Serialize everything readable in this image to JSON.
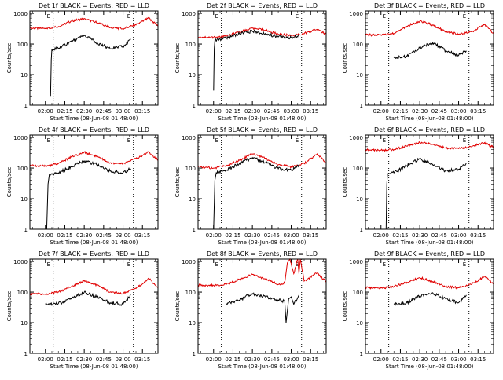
{
  "figure": {
    "shared": {
      "x_tick_labels": [
        "02:00",
        "02:15",
        "02:30",
        "02:45",
        "03:00",
        "03:15"
      ],
      "x_tick_values_min": [
        0,
        15,
        30,
        45,
        60,
        75
      ],
      "y_tick_labels": [
        "1",
        "10",
        "100",
        "1000"
      ],
      "y_tick_values": [
        1,
        10,
        100,
        1000
      ],
      "ylabel": "Counts/sec",
      "xlabel": "Start Time (08-Jun-08 01:48:00)",
      "event_marker_labels": [
        "E",
        "E"
      ],
      "colors": {
        "events": "#000000",
        "lld": "#e00000",
        "axes": "#000000",
        "background": "#ffffff"
      }
    },
    "panels": [
      {
        "title": "Det 1f BLACK = Events, RED = LLD"
      },
      {
        "title": "Det 2f BLACK = Events, RED = LLD"
      },
      {
        "title": "Det 3f BLACK = Events, RED = LLD"
      },
      {
        "title": "Det 4f BLACK = Events, RED = LLD"
      },
      {
        "title": "Det 5f BLACK = Events, RED = LLD"
      },
      {
        "title": "Det 6f BLACK = Events, RED = LLD"
      },
      {
        "title": "Det 7f BLACK = Events, RED = LLD"
      },
      {
        "title": "Det 8f BLACK = Events, RED = LLD"
      },
      {
        "title": "Det 9f BLACK = Events, RED = LLD"
      }
    ]
  },
  "chart_data": [
    {
      "type": "line",
      "title": "Det 1f BLACK = Events, RED = LLD",
      "xlabel": "",
      "ylabel": "Counts/sec",
      "yscale": "log",
      "xlim_min": [
        -12,
        87
      ],
      "ylim": [
        1,
        1200
      ],
      "event_markers_min": [
        6,
        68
      ],
      "series": [
        {
          "role": "lld",
          "x": [
            -12,
            0,
            10,
            20,
            30,
            40,
            50,
            60,
            70,
            80,
            87
          ],
          "y": [
            330,
            320,
            370,
            560,
            680,
            500,
            340,
            320,
            420,
            700,
            380
          ]
        },
        {
          "role": "events",
          "x": [
            4,
            4.5,
            5,
            10,
            20,
            30,
            40,
            50,
            60,
            66
          ],
          "y": [
            2,
            30,
            68,
            72,
            120,
            190,
            110,
            70,
            85,
            140
          ]
        }
      ]
    },
    {
      "type": "line",
      "title": "Det 2f BLACK = Events, RED = LLD",
      "xlabel": "",
      "ylabel": "Counts/sec",
      "yscale": "log",
      "xlim_min": [
        -12,
        87
      ],
      "ylim": [
        1,
        1200
      ],
      "event_markers_min": [
        6,
        68
      ],
      "series": [
        {
          "role": "lld",
          "x": [
            -12,
            0,
            10,
            20,
            30,
            40,
            50,
            60,
            66,
            72,
            80,
            87
          ],
          "y": [
            170,
            165,
            180,
            250,
            330,
            280,
            210,
            190,
            200,
            240,
            300,
            210
          ]
        },
        {
          "role": "events",
          "x": [
            0,
            0.5,
            1,
            10,
            20,
            30,
            40,
            50,
            60,
            66
          ],
          "y": [
            3,
            70,
            130,
            160,
            220,
            260,
            220,
            170,
            160,
            190
          ]
        }
      ]
    },
    {
      "type": "line",
      "title": "Det 3f BLACK = Events, RED = LLD",
      "xlabel": "",
      "ylabel": "Counts/sec",
      "yscale": "log",
      "xlim_min": [
        -12,
        87
      ],
      "ylim": [
        1,
        1200
      ],
      "event_markers_min": [
        6,
        68
      ],
      "series": [
        {
          "role": "lld",
          "x": [
            -12,
            0,
            10,
            20,
            30,
            40,
            50,
            60,
            70,
            80,
            87
          ],
          "y": [
            200,
            195,
            220,
            380,
            560,
            420,
            250,
            210,
            250,
            440,
            220
          ]
        },
        {
          "role": "events",
          "x": [
            10,
            20,
            30,
            40,
            50,
            60,
            66
          ],
          "y": [
            35,
            40,
            75,
            110,
            60,
            42,
            60
          ]
        }
      ]
    },
    {
      "type": "line",
      "title": "Det 4f BLACK = Events, RED = LLD",
      "xlabel": "",
      "ylabel": "Counts/sec",
      "yscale": "log",
      "xlim_min": [
        -12,
        87
      ],
      "ylim": [
        1,
        1200
      ],
      "event_markers_min": [
        6,
        68
      ],
      "series": [
        {
          "role": "lld",
          "x": [
            -12,
            0,
            10,
            20,
            30,
            40,
            50,
            60,
            70,
            80,
            87
          ],
          "y": [
            120,
            115,
            140,
            230,
            330,
            240,
            150,
            140,
            200,
            340,
            180
          ]
        },
        {
          "role": "events",
          "x": [
            1,
            2,
            3,
            10,
            20,
            30,
            40,
            50,
            60,
            66
          ],
          "y": [
            1,
            30,
            60,
            70,
            110,
            170,
            130,
            80,
            70,
            95
          ]
        }
      ]
    },
    {
      "type": "line",
      "title": "Det 5f BLACK = Events, RED = LLD",
      "xlabel": "",
      "ylabel": "Counts/sec",
      "yscale": "log",
      "xlim_min": [
        -12,
        87
      ],
      "ylim": [
        1,
        1200
      ],
      "event_markers_min": [
        6,
        68
      ],
      "series": [
        {
          "role": "lld",
          "x": [
            -12,
            0,
            10,
            20,
            30,
            40,
            50,
            60,
            70,
            80,
            87
          ],
          "y": [
            110,
            100,
            120,
            180,
            290,
            210,
            130,
            110,
            140,
            290,
            150
          ]
        },
        {
          "role": "events",
          "x": [
            0,
            1,
            2,
            10,
            20,
            30,
            40,
            50,
            60,
            66
          ],
          "y": [
            1,
            40,
            70,
            85,
            140,
            220,
            150,
            95,
            85,
            130
          ]
        }
      ]
    },
    {
      "type": "line",
      "title": "Det 6f BLACK = Events, RED = LLD",
      "xlabel": "",
      "ylabel": "Counts/sec",
      "yscale": "log",
      "xlim_min": [
        -12,
        87
      ],
      "ylim": [
        1,
        1200
      ],
      "event_markers_min": [
        6,
        68
      ],
      "series": [
        {
          "role": "lld",
          "x": [
            -12,
            0,
            10,
            20,
            30,
            40,
            50,
            60,
            70,
            80,
            87
          ],
          "y": [
            390,
            385,
            400,
            520,
            680,
            600,
            450,
            430,
            500,
            680,
            470
          ]
        },
        {
          "role": "events",
          "x": [
            4,
            4.5,
            5,
            10,
            20,
            30,
            40,
            50,
            60,
            66
          ],
          "y": [
            1,
            30,
            65,
            70,
            120,
            200,
            130,
            80,
            90,
            140
          ]
        }
      ]
    },
    {
      "type": "line",
      "title": "Det 7f BLACK = Events, RED = LLD",
      "xlabel": "",
      "ylabel": "Counts/sec",
      "yscale": "log",
      "xlim_min": [
        -12,
        87
      ],
      "ylim": [
        1,
        1200
      ],
      "event_markers_min": [
        6,
        68
      ],
      "series": [
        {
          "role": "lld",
          "x": [
            -12,
            0,
            10,
            20,
            30,
            40,
            50,
            60,
            70,
            80,
            87
          ],
          "y": [
            90,
            85,
            100,
            150,
            240,
            170,
            100,
            90,
            130,
            280,
            140
          ]
        },
        {
          "role": "events",
          "x": [
            0,
            10,
            20,
            30,
            40,
            50,
            60,
            66
          ],
          "y": [
            40,
            42,
            60,
            100,
            70,
            45,
            40,
            80
          ]
        }
      ]
    },
    {
      "type": "line",
      "title": "Det 8f BLACK = Events, RED = LLD",
      "xlabel": "",
      "ylabel": "Counts/sec",
      "yscale": "log",
      "xlim_min": [
        -12,
        87
      ],
      "ylim": [
        1,
        1200
      ],
      "event_markers_min": [
        6,
        68
      ],
      "series": [
        {
          "role": "lld",
          "x": [
            -12,
            0,
            10,
            20,
            30,
            40,
            50,
            55,
            57,
            59,
            62,
            65,
            66,
            67,
            70,
            80,
            87
          ],
          "y": [
            170,
            165,
            180,
            260,
            380,
            270,
            180,
            200,
            900,
            1200,
            400,
            1200,
            400,
            1200,
            230,
            420,
            220
          ]
        },
        {
          "role": "events",
          "x": [
            10,
            20,
            30,
            40,
            50,
            55,
            56,
            58,
            60,
            62,
            66
          ],
          "y": [
            42,
            55,
            90,
            70,
            55,
            50,
            10,
            60,
            70,
            40,
            80
          ]
        }
      ]
    },
    {
      "type": "line",
      "title": "Det 9f BLACK = Events, RED = LLD",
      "xlabel": "",
      "ylabel": "Counts/sec",
      "yscale": "log",
      "xlim_min": [
        -12,
        87
      ],
      "ylim": [
        1,
        1200
      ],
      "event_markers_min": [
        6,
        68
      ],
      "series": [
        {
          "role": "lld",
          "x": [
            -12,
            0,
            10,
            20,
            30,
            40,
            50,
            60,
            70,
            80,
            87
          ],
          "y": [
            140,
            135,
            150,
            210,
            300,
            220,
            150,
            140,
            180,
            330,
            190
          ]
        },
        {
          "role": "events",
          "x": [
            10,
            20,
            30,
            40,
            50,
            60,
            66
          ],
          "y": [
            40,
            45,
            75,
            95,
            60,
            45,
            80
          ]
        }
      ]
    }
  ]
}
